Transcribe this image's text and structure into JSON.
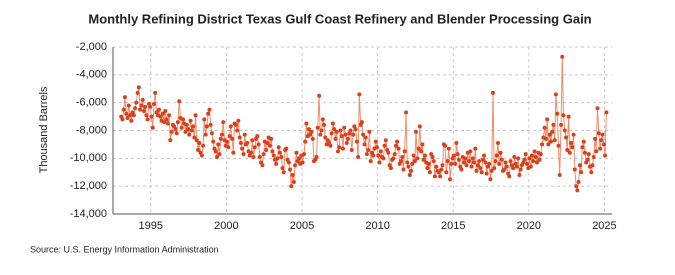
{
  "chart_data": {
    "type": "line",
    "title": "Monthly Refining District Texas Gulf Coast Refinery and Blender Processing Gain",
    "y_label": "Thousand Barrels",
    "source": "Source: U.S. Energy Information Administration",
    "xlim": [
      1992.5,
      2025.5
    ],
    "xticks": [
      1995,
      2000,
      2005,
      2010,
      2015,
      2020,
      2025
    ],
    "ylim": [
      -14000,
      -2000
    ],
    "yticks": [
      {
        "value": -14000,
        "label": "-14,000"
      },
      {
        "value": -12000,
        "label": "-12,000"
      },
      {
        "value": -10000,
        "label": "-10,000"
      },
      {
        "value": -8000,
        "label": "-8,000"
      },
      {
        "value": -6000,
        "label": "-6,000"
      },
      {
        "value": -4000,
        "label": "-4,000"
      },
      {
        "value": -2000,
        "label": "-2,000"
      }
    ],
    "grid": true,
    "line_color": "#f08c6c",
    "marker_color": "#d9401c",
    "x": [
      1993.04,
      1993.13,
      1993.21,
      1993.29,
      1993.38,
      1993.46,
      1993.54,
      1993.63,
      1993.71,
      1993.79,
      1993.88,
      1993.96,
      1994.04,
      1994.13,
      1994.21,
      1994.29,
      1994.38,
      1994.46,
      1994.54,
      1994.63,
      1994.71,
      1994.79,
      1994.88,
      1994.96,
      1995.04,
      1995.13,
      1995.21,
      1995.29,
      1995.38,
      1995.46,
      1995.54,
      1995.63,
      1995.71,
      1995.79,
      1995.88,
      1995.96,
      1996.04,
      1996.13,
      1996.21,
      1996.29,
      1996.38,
      1996.46,
      1996.54,
      1996.63,
      1996.71,
      1996.79,
      1996.88,
      1996.96,
      1997.04,
      1997.13,
      1997.21,
      1997.29,
      1997.38,
      1997.46,
      1997.54,
      1997.63,
      1997.71,
      1997.79,
      1997.88,
      1997.96,
      1998.04,
      1998.13,
      1998.21,
      1998.29,
      1998.38,
      1998.46,
      1998.54,
      1998.63,
      1998.71,
      1998.79,
      1998.88,
      1998.96,
      1999.04,
      1999.13,
      1999.21,
      1999.29,
      1999.38,
      1999.46,
      1999.54,
      1999.63,
      1999.71,
      1999.79,
      1999.88,
      1999.96,
      2000.04,
      2000.13,
      2000.21,
      2000.29,
      2000.38,
      2000.46,
      2000.54,
      2000.63,
      2000.71,
      2000.79,
      2000.88,
      2000.96,
      2001.04,
      2001.13,
      2001.21,
      2001.29,
      2001.38,
      2001.46,
      2001.54,
      2001.63,
      2001.71,
      2001.79,
      2001.88,
      2001.96,
      2002.04,
      2002.13,
      2002.21,
      2002.29,
      2002.38,
      2002.46,
      2002.54,
      2002.63,
      2002.71,
      2002.79,
      2002.88,
      2002.96,
      2003.04,
      2003.13,
      2003.21,
      2003.29,
      2003.38,
      2003.46,
      2003.54,
      2003.63,
      2003.71,
      2003.79,
      2003.88,
      2003.96,
      2004.04,
      2004.13,
      2004.21,
      2004.29,
      2004.38,
      2004.46,
      2004.54,
      2004.63,
      2004.71,
      2004.79,
      2004.88,
      2004.96,
      2005.04,
      2005.13,
      2005.21,
      2005.29,
      2005.38,
      2005.46,
      2005.54,
      2005.63,
      2005.71,
      2005.79,
      2005.88,
      2005.96,
      2006.04,
      2006.13,
      2006.21,
      2006.29,
      2006.38,
      2006.46,
      2006.54,
      2006.63,
      2006.71,
      2006.79,
      2006.88,
      2006.96,
      2007.04,
      2007.13,
      2007.21,
      2007.29,
      2007.38,
      2007.46,
      2007.54,
      2007.63,
      2007.71,
      2007.79,
      2007.88,
      2007.96,
      2008.04,
      2008.13,
      2008.21,
      2008.29,
      2008.38,
      2008.46,
      2008.54,
      2008.63,
      2008.71,
      2008.79,
      2008.88,
      2008.96,
      2009.04,
      2009.13,
      2009.21,
      2009.29,
      2009.38,
      2009.46,
      2009.54,
      2009.63,
      2009.71,
      2009.79,
      2009.88,
      2009.96,
      2010.04,
      2010.13,
      2010.21,
      2010.29,
      2010.38,
      2010.46,
      2010.54,
      2010.63,
      2010.71,
      2010.79,
      2010.88,
      2010.96,
      2011.04,
      2011.13,
      2011.21,
      2011.29,
      2011.38,
      2011.46,
      2011.54,
      2011.63,
      2011.71,
      2011.79,
      2011.88,
      2011.96,
      2012.04,
      2012.13,
      2012.21,
      2012.29,
      2012.38,
      2012.46,
      2012.54,
      2012.63,
      2012.71,
      2012.79,
      2012.88,
      2012.96,
      2013.04,
      2013.13,
      2013.21,
      2013.29,
      2013.38,
      2013.46,
      2013.54,
      2013.63,
      2013.71,
      2013.79,
      2013.88,
      2013.96,
      2014.04,
      2014.13,
      2014.21,
      2014.29,
      2014.38,
      2014.46,
      2014.54,
      2014.63,
      2014.71,
      2014.79,
      2014.88,
      2014.96,
      2015.04,
      2015.13,
      2015.21,
      2015.29,
      2015.38,
      2015.46,
      2015.54,
      2015.63,
      2015.71,
      2015.79,
      2015.88,
      2015.96,
      2016.04,
      2016.13,
      2016.21,
      2016.29,
      2016.38,
      2016.46,
      2016.54,
      2016.63,
      2016.71,
      2016.79,
      2016.88,
      2016.96,
      2017.04,
      2017.13,
      2017.21,
      2017.29,
      2017.38,
      2017.46,
      2017.54,
      2017.63,
      2017.71,
      2017.79,
      2017.88,
      2017.96,
      2018.04,
      2018.13,
      2018.21,
      2018.29,
      2018.38,
      2018.46,
      2018.54,
      2018.63,
      2018.71,
      2018.79,
      2018.88,
      2018.96,
      2019.04,
      2019.13,
      2019.21,
      2019.29,
      2019.38,
      2019.46,
      2019.54,
      2019.63,
      2019.71,
      2019.79,
      2019.88,
      2019.96,
      2020.04,
      2020.13,
      2020.21,
      2020.29,
      2020.38,
      2020.46,
      2020.54,
      2020.63,
      2020.71,
      2020.79,
      2020.88,
      2020.96,
      2021.04,
      2021.13,
      2021.21,
      2021.29,
      2021.38,
      2021.46,
      2021.54,
      2021.63,
      2021.71,
      2021.79,
      2021.88,
      2021.96,
      2022.04,
      2022.13,
      2022.21,
      2022.29,
      2022.38,
      2022.46,
      2022.54,
      2022.63,
      2022.71,
      2022.79,
      2022.88,
      2022.96,
      2023.04,
      2023.13,
      2023.21,
      2023.29,
      2023.38,
      2023.46,
      2023.54,
      2023.63,
      2023.71,
      2023.79,
      2023.88,
      2023.96,
      2024.04,
      2024.13,
      2024.21,
      2024.29,
      2024.38,
      2024.46,
      2024.54,
      2024.63,
      2024.71,
      2024.79,
      2024.88,
      2024.96,
      2025.04,
      2025.13
    ],
    "values": [
      -7000,
      -7200,
      -6500,
      -5600,
      -6800,
      -7100,
      -6200,
      -6900,
      -7300,
      -6700,
      -6900,
      -6400,
      -6000,
      -5300,
      -4900,
      -6500,
      -6200,
      -5800,
      -6600,
      -6300,
      -6900,
      -7200,
      -6100,
      -6300,
      -7000,
      -7800,
      -6100,
      -5300,
      -6700,
      -6900,
      -6500,
      -7000,
      -7300,
      -6800,
      -7400,
      -6600,
      -7200,
      -7500,
      -6900,
      -8700,
      -8100,
      -7600,
      -7700,
      -7900,
      -8200,
      -7400,
      -5900,
      -7100,
      -7800,
      -7200,
      -7500,
      -8100,
      -7600,
      -7900,
      -8300,
      -7300,
      -8000,
      -7700,
      -8500,
      -6900,
      -8700,
      -9400,
      -8900,
      -9600,
      -9800,
      -9100,
      -7200,
      -8300,
      -7700,
      -6800,
      -6500,
      -7600,
      -8200,
      -8800,
      -9300,
      -9500,
      -9900,
      -9000,
      -9700,
      -8600,
      -8300,
      -7400,
      -8700,
      -9100,
      -8800,
      -9200,
      -8400,
      -7700,
      -8600,
      -9600,
      -7500,
      -7600,
      -8000,
      -7300,
      -8500,
      -8900,
      -9300,
      -9700,
      -8300,
      -9000,
      -8900,
      -9500,
      -9800,
      -9600,
      -8700,
      -9900,
      -9200,
      -8600,
      -8400,
      -9000,
      -9900,
      -10300,
      -10500,
      -9700,
      -8800,
      -9400,
      -8900,
      -8500,
      -9100,
      -8600,
      -9500,
      -9800,
      -10100,
      -10400,
      -10000,
      -9200,
      -9600,
      -9900,
      -10700,
      -11000,
      -9400,
      -9300,
      -10100,
      -10300,
      -10800,
      -12000,
      -11200,
      -11700,
      -10500,
      -9600,
      -10200,
      -10000,
      -10400,
      -9800,
      -10300,
      -9700,
      -8800,
      -7500,
      -8400,
      -7900,
      -8300,
      -8100,
      -8600,
      -10200,
      -10100,
      -9900,
      -7800,
      -5500,
      -8300,
      -8000,
      -7200,
      -7600,
      -8500,
      -9000,
      -8700,
      -8900,
      -9100,
      -8200,
      -7500,
      -7900,
      -8600,
      -8100,
      -9500,
      -9200,
      -8000,
      -8400,
      -9300,
      -7800,
      -8300,
      -8900,
      -8600,
      -8200,
      -8000,
      -9400,
      -8300,
      -7700,
      -7900,
      -8800,
      -9900,
      -5400,
      -7600,
      -7400,
      -8300,
      -9000,
      -8500,
      -9700,
      -9400,
      -8100,
      -10200,
      -9600,
      -9800,
      -9300,
      -8800,
      -9200,
      -9800,
      -10300,
      -9500,
      -9900,
      -10000,
      -9100,
      -8700,
      -9400,
      -9600,
      -10500,
      -10700,
      -10100,
      -10000,
      -9700,
      -9100,
      -8800,
      -9300,
      -10400,
      -10200,
      -9900,
      -10800,
      -9500,
      -6700,
      -10300,
      -10600,
      -11200,
      -10900,
      -10400,
      -9800,
      -10200,
      -8100,
      -10000,
      -9300,
      -7700,
      -9500,
      -9000,
      -10100,
      -9800,
      -10300,
      -10700,
      -10400,
      -11000,
      -9700,
      -9900,
      -10200,
      -11300,
      -10600,
      -10900,
      -11000,
      -11300,
      -10800,
      -10500,
      -9000,
      -9100,
      -11000,
      -10200,
      -9300,
      -11500,
      -10400,
      -10000,
      -9800,
      -10400,
      -8900,
      -9700,
      -10100,
      -10600,
      -10800,
      -9900,
      -10300,
      -10000,
      -10500,
      -9600,
      -10200,
      -9500,
      -10600,
      -10000,
      -10300,
      -9300,
      -10900,
      -10500,
      -10200,
      -10700,
      -11000,
      -10100,
      -9800,
      -10300,
      -11100,
      -10600,
      -10400,
      -11500,
      -10900,
      -5300,
      -10700,
      -10200,
      -9800,
      -8900,
      -10400,
      -9600,
      -10100,
      -10900,
      -10800,
      -10300,
      -10600,
      -11100,
      -11300,
      -10200,
      -10500,
      -10700,
      -9900,
      -10400,
      -10600,
      -10000,
      -11200,
      -10800,
      -10500,
      -10300,
      -10100,
      -9700,
      -10400,
      -10700,
      -10000,
      -10600,
      -9800,
      -10200,
      -9500,
      -9900,
      -10300,
      -9600,
      -10100,
      -9700,
      -9000,
      -8500,
      -7800,
      -8600,
      -7200,
      -9000,
      -8300,
      -8800,
      -8100,
      -7600,
      -8700,
      -5400,
      -6800,
      -9100,
      -11200,
      -7600,
      -2700,
      -6900,
      -8000,
      -8500,
      -9400,
      -7000,
      -9600,
      -8900,
      -9200,
      -8300,
      -10800,
      -12000,
      -12300,
      -11700,
      -10500,
      -11000,
      -9200,
      -8800,
      -9600,
      -10300,
      -10100,
      -9700,
      -10600,
      -11000,
      -10500,
      -9900,
      -8600,
      -9500,
      -6400,
      -8200,
      -9300,
      -8700,
      -8300,
      -9000,
      -9800,
      -6700
    ]
  }
}
